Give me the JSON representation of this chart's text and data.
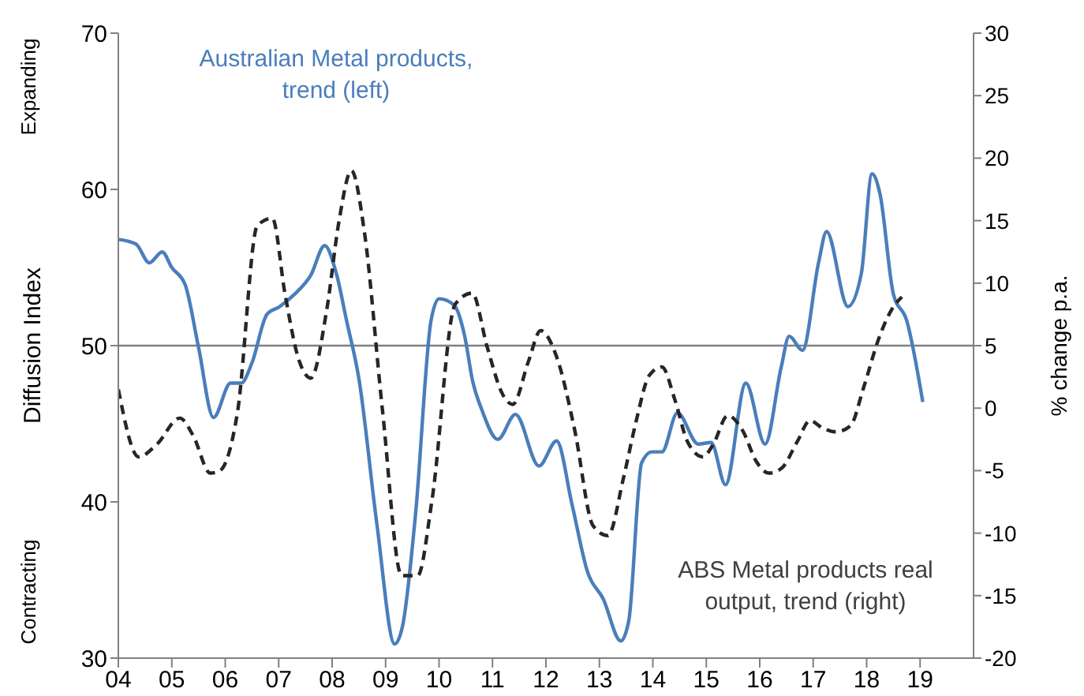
{
  "chart_data": {
    "type": "line",
    "ylabel": "Diffusion Index",
    "y2label": "% change p.a.",
    "annotations": [
      "Expanding",
      "Contracting"
    ],
    "xlim": [
      2004,
      2020
    ],
    "xticks": [
      {
        "value": 2004,
        "label": "04"
      },
      {
        "value": 2005,
        "label": "05"
      },
      {
        "value": 2006,
        "label": "06"
      },
      {
        "value": 2007,
        "label": "07"
      },
      {
        "value": 2008,
        "label": "08"
      },
      {
        "value": 2009,
        "label": "09"
      },
      {
        "value": 2010,
        "label": "10"
      },
      {
        "value": 2011,
        "label": "11"
      },
      {
        "value": 2012,
        "label": "12"
      },
      {
        "value": 2013,
        "label": "13"
      },
      {
        "value": 2014,
        "label": "14"
      },
      {
        "value": 2015,
        "label": "15"
      },
      {
        "value": 2016,
        "label": "16"
      },
      {
        "value": 2017,
        "label": "17"
      },
      {
        "value": 2018,
        "label": "18"
      },
      {
        "value": 2019,
        "label": "19"
      }
    ],
    "ylim": [
      30,
      70
    ],
    "yticks": [
      30,
      40,
      50,
      60,
      70
    ],
    "y2lim": [
      -20,
      30
    ],
    "y2ticks": [
      -20,
      -15,
      -10,
      -5,
      0,
      5,
      10,
      15,
      20,
      25,
      30
    ],
    "grid": false,
    "legend": false,
    "marker": "none",
    "ref_lines": [
      {
        "axis": "y",
        "value": 50,
        "color": "#808080"
      }
    ],
    "series": [
      {
        "name": "Australian Metal products, trend (left)",
        "color": "#4a7ebb",
        "line_style": "solid",
        "x": [
          2004.0,
          2004.33,
          2004.58,
          2004.82,
          2005.0,
          2005.25,
          2005.5,
          2005.78,
          2006.1,
          2006.3,
          2006.5,
          2006.78,
          2007.02,
          2007.3,
          2007.6,
          2007.86,
          2008.08,
          2008.27,
          2008.5,
          2008.84,
          2009.17,
          2009.32,
          2009.56,
          2009.85,
          2010.0,
          2010.28,
          2010.48,
          2010.63,
          2010.8,
          2011.1,
          2011.43,
          2011.87,
          2012.2,
          2012.49,
          2012.78,
          2013.07,
          2013.4,
          2013.55,
          2013.79,
          2013.98,
          2014.17,
          2014.46,
          2014.85,
          2015.09,
          2015.36,
          2015.74,
          2016.1,
          2016.4,
          2016.55,
          2016.8,
          2017.1,
          2017.25,
          2017.65,
          2017.9,
          2018.1,
          2018.25,
          2018.5,
          2018.75,
          2019.05
        ],
        "values": [
          56.8,
          56.5,
          55.3,
          56.0,
          55.0,
          53.9,
          49.9,
          45.4,
          47.6,
          47.6,
          48.9,
          52.0,
          52.5,
          53.3,
          54.5,
          56.4,
          54.6,
          51.6,
          47.9,
          38.5,
          30.9,
          32.1,
          39.2,
          51.6,
          53.0,
          52.6,
          50.6,
          47.7,
          45.9,
          44.0,
          45.6,
          42.3,
          43.9,
          39.8,
          35.5,
          33.8,
          31.1,
          32.4,
          42.5,
          43.2,
          43.2,
          45.7,
          43.7,
          43.8,
          41.1,
          47.6,
          43.7,
          48.6,
          50.6,
          49.7,
          55.3,
          57.3,
          52.5,
          54.6,
          61.0,
          59.7,
          53.3,
          51.6,
          46.4
        ]
      },
      {
        "name": "ABS Metal products real output, trend (right)",
        "color": "#262626",
        "line_style": "dashed",
        "axis": "y2",
        "x": [
          2004.0,
          2004.38,
          2004.72,
          2005.15,
          2005.4,
          2005.72,
          2005.9,
          2006.23,
          2006.6,
          2006.88,
          2007.12,
          2007.36,
          2007.6,
          2007.9,
          2008.13,
          2008.36,
          2008.6,
          2008.94,
          2009.3,
          2009.6,
          2009.87,
          2010.3,
          2010.62,
          2010.9,
          2011.19,
          2011.38,
          2011.67,
          2011.9,
          2012.2,
          2012.54,
          2012.88,
          2013.16,
          2013.45,
          2013.69,
          2013.93,
          2014.17,
          2014.41,
          2014.65,
          2014.94,
          2015.13,
          2015.4,
          2015.68,
          2015.94,
          2016.17,
          2016.41,
          2016.7,
          2016.94,
          2017.18,
          2017.42,
          2017.7,
          2017.94,
          2018.23,
          2018.47,
          2018.66
        ],
        "values": [
          1.5,
          -3.9,
          -2.9,
          -0.8,
          -2.2,
          -5.2,
          -5.0,
          -0.3,
          14.6,
          15.2,
          9.1,
          4.1,
          2.4,
          7.9,
          15.0,
          19.0,
          14.2,
          -0.1,
          -13.4,
          -13.4,
          -7.3,
          8.3,
          9.2,
          4.9,
          1.1,
          0.3,
          3.7,
          6.2,
          4.1,
          -1.8,
          -9.4,
          -10.2,
          -5.6,
          -1.0,
          2.6,
          3.3,
          0.7,
          -2.7,
          -3.9,
          -2.9,
          -0.6,
          -1.8,
          -4.3,
          -5.2,
          -4.8,
          -2.7,
          -1.0,
          -1.6,
          -1.9,
          -1.4,
          1.6,
          5.6,
          7.9,
          8.9
        ]
      }
    ]
  }
}
